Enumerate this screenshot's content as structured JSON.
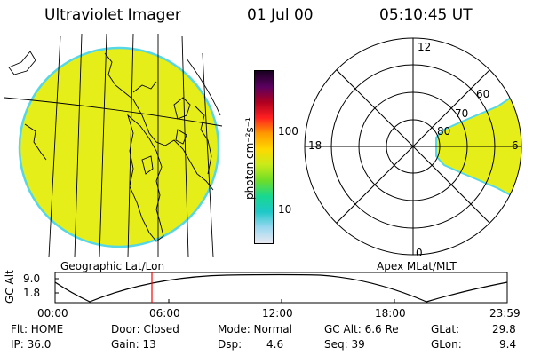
{
  "header": {
    "instrument": "Ultraviolet Imager",
    "date": "01 Jul 00",
    "time": "05:10:45 UT"
  },
  "colors": {
    "fill": "#e6ee1a",
    "rim": "#56d7e6",
    "background": "#ffffff",
    "marker": "#ff0000"
  },
  "colorbar": {
    "unit_label": "photon cm⁻²s⁻¹",
    "ticks": [
      "100",
      "10"
    ],
    "gradient": [
      "#1a0020",
      "#5a0060",
      "#b00020",
      "#ff2020",
      "#ff9a00",
      "#ffd800",
      "#c8ea1a",
      "#6edd28",
      "#18d890",
      "#1ec8c8",
      "#9ad8f0",
      "#e8e8f0"
    ]
  },
  "left_map": {
    "caption": "Geographic Lat/Lon"
  },
  "polar": {
    "caption": "Apex MLat/MLT",
    "mlt_labels": {
      "top": "12",
      "left": "18",
      "right": "6",
      "bottom": "0"
    },
    "lat_labels": [
      "60",
      "70",
      "80"
    ]
  },
  "orbit_plot": {
    "ylabel": "GC Alt",
    "yticks": [
      "9.0",
      "1.8"
    ],
    "xticks": [
      "00:00",
      "06:00",
      "12:00",
      "18:00",
      "23:59"
    ],
    "marker_time": "05:10"
  },
  "status": {
    "row1": {
      "flt": "Flt: HOME",
      "door": "Door: Closed",
      "mode": "Mode: Normal",
      "gcalt": "GC Alt: 6.6 Re",
      "glat_label": "GLat:",
      "glat_value": "29.8"
    },
    "row2": {
      "ip": "IP: 36.0",
      "gain": "Gain: 13",
      "dsp_label": "Dsp:",
      "dsp_value": "4.6",
      "seq": "Seq: 39",
      "glon_label": "GLon:",
      "glon_value": "9.4"
    }
  }
}
